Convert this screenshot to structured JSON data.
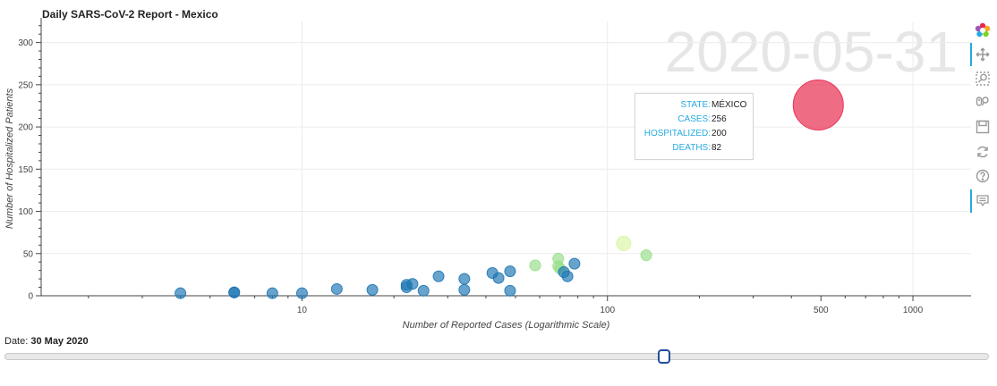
{
  "chart_data": {
    "type": "scatter",
    "title": "Daily SARS-CoV-2 Report - Mexico",
    "watermark_date": "2020-05-31",
    "xlabel": "Number of Reported Cases (Logarithmic Scale)",
    "ylabel": "Number of Hospitalized Patients",
    "x_scale": "log",
    "xlim": [
      1.4,
      1550
    ],
    "ylim": [
      0,
      325
    ],
    "x_ticks": [
      10,
      100,
      500,
      1000
    ],
    "y_ticks": [
      0,
      50,
      100,
      150,
      200,
      250,
      300
    ],
    "grid": true,
    "points": [
      {
        "x": 4,
        "y": 3,
        "size": 6,
        "color": "#1f77b4"
      },
      {
        "x": 6,
        "y": 4,
        "size": 6,
        "color": "#1f77b4"
      },
      {
        "x": 6,
        "y": 4,
        "size": 6,
        "color": "#1f77b4"
      },
      {
        "x": 8,
        "y": 3,
        "size": 6,
        "color": "#1f77b4"
      },
      {
        "x": 10,
        "y": 3,
        "size": 6,
        "color": "#1f77b4"
      },
      {
        "x": 13,
        "y": 8,
        "size": 6,
        "color": "#1f77b4"
      },
      {
        "x": 17,
        "y": 7,
        "size": 6,
        "color": "#1f77b4"
      },
      {
        "x": 22,
        "y": 13,
        "size": 6,
        "color": "#1f77b4"
      },
      {
        "x": 22,
        "y": 10,
        "size": 6,
        "color": "#1f77b4"
      },
      {
        "x": 23,
        "y": 14,
        "size": 6,
        "color": "#1f77b4"
      },
      {
        "x": 25,
        "y": 6,
        "size": 6,
        "color": "#1f77b4"
      },
      {
        "x": 28,
        "y": 23,
        "size": 6,
        "color": "#1f77b4"
      },
      {
        "x": 34,
        "y": 20,
        "size": 6,
        "color": "#1f77b4"
      },
      {
        "x": 34,
        "y": 7,
        "size": 6,
        "color": "#1f77b4"
      },
      {
        "x": 42,
        "y": 27,
        "size": 6,
        "color": "#1f77b4"
      },
      {
        "x": 44,
        "y": 21,
        "size": 6,
        "color": "#1f77b4"
      },
      {
        "x": 48,
        "y": 29,
        "size": 6,
        "color": "#1f77b4"
      },
      {
        "x": 48,
        "y": 6,
        "size": 6,
        "color": "#1f77b4"
      },
      {
        "x": 58,
        "y": 36,
        "size": 6,
        "color": "#98df8a"
      },
      {
        "x": 69,
        "y": 44,
        "size": 6,
        "color": "#98df8a"
      },
      {
        "x": 69,
        "y": 35,
        "size": 6,
        "color": "#98df8a"
      },
      {
        "x": 70,
        "y": 32,
        "size": 6,
        "color": "#98df8a"
      },
      {
        "x": 72,
        "y": 28,
        "size": 6,
        "color": "#1f77b4"
      },
      {
        "x": 74,
        "y": 23,
        "size": 6,
        "color": "#1f77b4"
      },
      {
        "x": 78,
        "y": 38,
        "size": 6,
        "color": "#1f77b4"
      },
      {
        "x": 113,
        "y": 62,
        "size": 8,
        "color": "#dbf5a6"
      },
      {
        "x": 134,
        "y": 48,
        "size": 6,
        "color": "#98df8a"
      },
      {
        "x": 256,
        "y": 200,
        "size": 22,
        "color": "#e8274b"
      },
      {
        "x": 490,
        "y": 226,
        "size": 28,
        "color": "#e8274b"
      }
    ]
  },
  "tooltip": {
    "rows": [
      {
        "key": "STATE:",
        "value": "MÉXICO"
      },
      {
        "key": "CASES:",
        "value": "256"
      },
      {
        "key": "HOSPITALIZED:",
        "value": "200"
      },
      {
        "key": "DEATHS:",
        "value": "82"
      }
    ]
  },
  "toolbar": {
    "tools": [
      "bokeh-logo-icon",
      "pan-icon",
      "box-zoom-icon",
      "wheel-zoom-icon",
      "save-icon",
      "reset-icon",
      "help-icon",
      "hover-icon"
    ]
  },
  "slider": {
    "label": "Date:",
    "value_text": "30 May 2020",
    "fraction": 0.67
  }
}
